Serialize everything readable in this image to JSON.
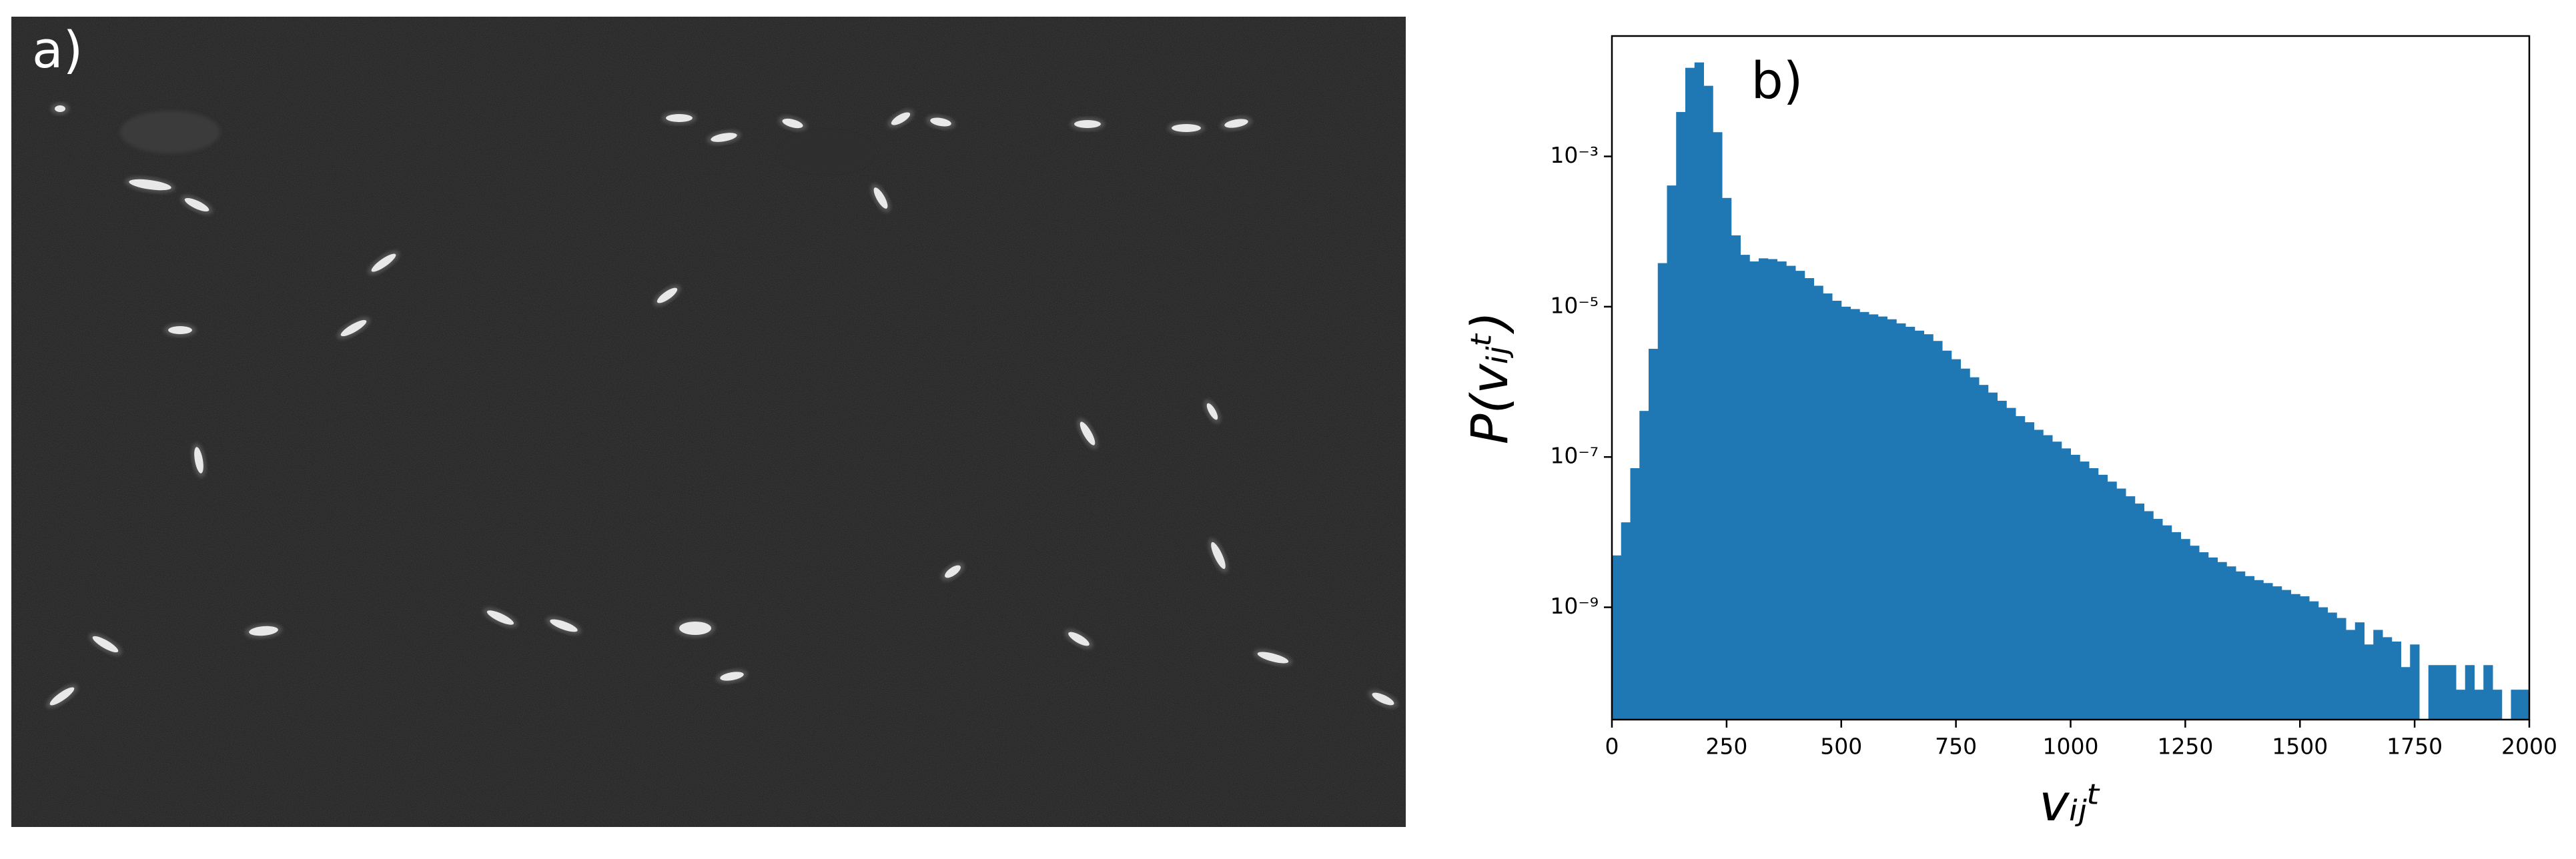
{
  "panel_a": {
    "label": "a)"
  },
  "chart_data": {
    "type": "histogram",
    "annotation": "b)",
    "xlabel": "vᵢⱼᵗ",
    "ylabel": "P(vᵢⱼᵗ)",
    "color": "#1f77b4",
    "log_y": true,
    "grid": false,
    "xlim": [
      0,
      2000
    ],
    "xticks": [
      0,
      250,
      500,
      750,
      1000,
      1250,
      1500,
      1750,
      2000
    ],
    "ylim": [
      3.2e-11,
      0.04
    ],
    "yticks": [
      {
        "value": 1e-09,
        "label": "10⁻⁹"
      },
      {
        "value": 1e-07,
        "label": "10⁻⁷"
      },
      {
        "value": 1e-05,
        "label": "10⁻⁵"
      },
      {
        "value": 0.001,
        "label": "10⁻³"
      }
    ],
    "bins": [
      0,
      20,
      40,
      60,
      80,
      100,
      120,
      140,
      160,
      180,
      200,
      220,
      240,
      260,
      280,
      300,
      320,
      340,
      360,
      380,
      400,
      420,
      440,
      460,
      480,
      500,
      520,
      540,
      560,
      580,
      600,
      620,
      640,
      660,
      680,
      700,
      720,
      740,
      760,
      780,
      800,
      820,
      840,
      860,
      880,
      900,
      920,
      940,
      960,
      980,
      1000,
      1020,
      1040,
      1060,
      1080,
      1100,
      1120,
      1140,
      1160,
      1180,
      1200,
      1220,
      1240,
      1260,
      1280,
      1300,
      1320,
      1340,
      1360,
      1380,
      1400,
      1420,
      1440,
      1460,
      1480,
      1500,
      1520,
      1540,
      1560,
      1580,
      1600,
      1620,
      1640,
      1660,
      1680,
      1700,
      1720,
      1740,
      1760,
      1780,
      1800,
      1820,
      1840,
      1860,
      1880,
      1900,
      1920,
      1940,
      1960,
      1980,
      2000
    ],
    "values": [
      4.9e-09,
      1.35e-08,
      7.1e-08,
      4.1e-07,
      2.75e-06,
      3.8e-05,
      0.00041,
      0.0039,
      0.0151,
      0.0178,
      0.0087,
      0.0021,
      0.00028,
      8.9e-05,
      4.9e-05,
      4e-05,
      4.4e-05,
      4.3e-05,
      4e-05,
      3.5e-05,
      3e-05,
      2.4e-05,
      1.9e-05,
      1.5e-05,
      1.2e-05,
      1e-05,
      9.3e-06,
      8.5e-06,
      7.9e-06,
      7.4e-06,
      6.8e-06,
      6e-06,
      5.4e-06,
      4.8e-06,
      4.3e-06,
      3.5e-06,
      2.6e-06,
      2e-06,
      1.5e-06,
      1.15e-06,
      9.1e-07,
      7.2e-07,
      5.6e-07,
      4.5e-07,
      3.5e-07,
      2.9e-07,
      2.3e-07,
      1.95e-07,
      1.6e-07,
      1.3e-07,
      1.07e-07,
      8.7e-08,
      7.1e-08,
      5.8e-08,
      4.7e-08,
      3.8e-08,
      3e-08,
      2.4e-08,
      1.9e-08,
      1.5e-08,
      1.23e-08,
      1e-08,
      8.1e-09,
      6.6e-09,
      5.4e-09,
      4.6e-09,
      4e-09,
      3.5e-09,
      3e-09,
      2.6e-09,
      2.3e-09,
      2.1e-09,
      1.9e-09,
      1.7e-09,
      1.5e-09,
      1.4e-09,
      1.2e-09,
      1e-09,
      8.5e-10,
      7.2e-10,
      5e-10,
      6.3e-10,
      3.2e-10,
      5e-10,
      4e-10,
      3.5e-10,
      1.6e-10,
      3.2e-10,
      0,
      1.7e-10,
      1.7e-10,
      1.7e-10,
      8e-11,
      1.7e-10,
      8e-11,
      1.7e-10,
      8e-11,
      0,
      8e-11,
      8e-11
    ]
  }
}
